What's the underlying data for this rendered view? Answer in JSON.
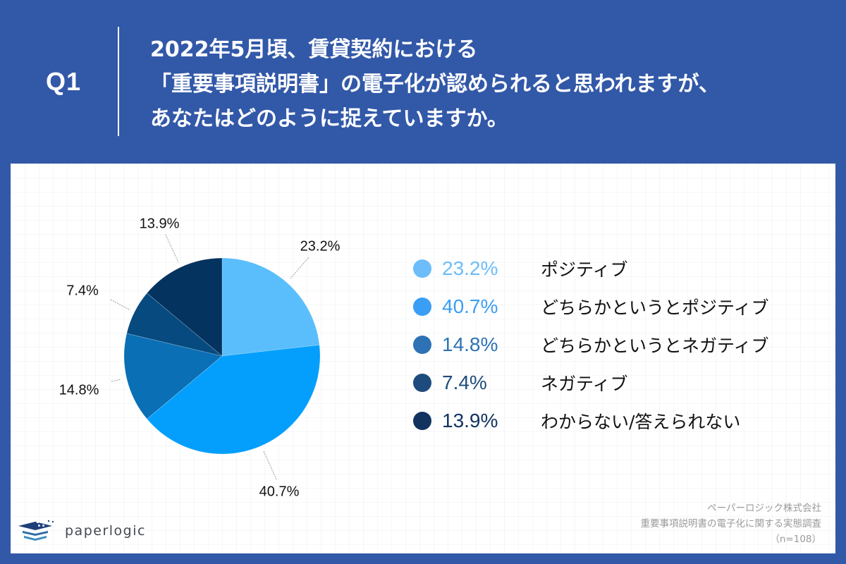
{
  "header": {
    "question_number": "Q1",
    "question_lines": [
      "2022年5月頃、賃貸契約における",
      "「重要事項説明書」の電子化が認められると思われますが、",
      "あなたはどのように捉えていますか。"
    ],
    "background_color": "#3258A8"
  },
  "chart_data": {
    "type": "pie",
    "title": "2022年5月頃、賃貸契約における「重要事項説明書」の電子化が認められると思われますが、あなたはどのように捉えていますか。",
    "categories": [
      "ポジティブ",
      "どちらかというとポジティブ",
      "どちらかというとネガティブ",
      "ネガティブ",
      "わからない/答えられない"
    ],
    "values": [
      23.2,
      40.7,
      14.8,
      7.4,
      13.9
    ],
    "value_labels": [
      "23.2%",
      "40.7%",
      "14.8%",
      "7.4%",
      "13.9%"
    ],
    "unit": "%",
    "start_angle": "12 o'clock, clockwise",
    "slice_colors": [
      "#5BBEFC",
      "#049FFC",
      "#0A6FB5",
      "#064A80",
      "#05335F"
    ],
    "legend_colors": [
      "#6CBDF9",
      "#3A9EF5",
      "#2C72B5",
      "#1D4B7D",
      "#123360"
    ],
    "legend_position": "right",
    "sample_size": "n=108"
  },
  "legend": [
    {
      "pct": "23.2%",
      "label": "ポジティブ"
    },
    {
      "pct": "40.7%",
      "label": "どちらかというとポジティブ"
    },
    {
      "pct": "14.8%",
      "label": "どちらかというとネガティブ"
    },
    {
      "pct": "7.4%",
      "label": "ネガティブ"
    },
    {
      "pct": "13.9%",
      "label": "わからない/答えられない"
    }
  ],
  "footer": {
    "company": "ペーパーロジック株式会社",
    "survey": "重要事項説明書の電子化に関する実態調査",
    "sample": "（n=108）",
    "logo_text": "paperlogic"
  }
}
